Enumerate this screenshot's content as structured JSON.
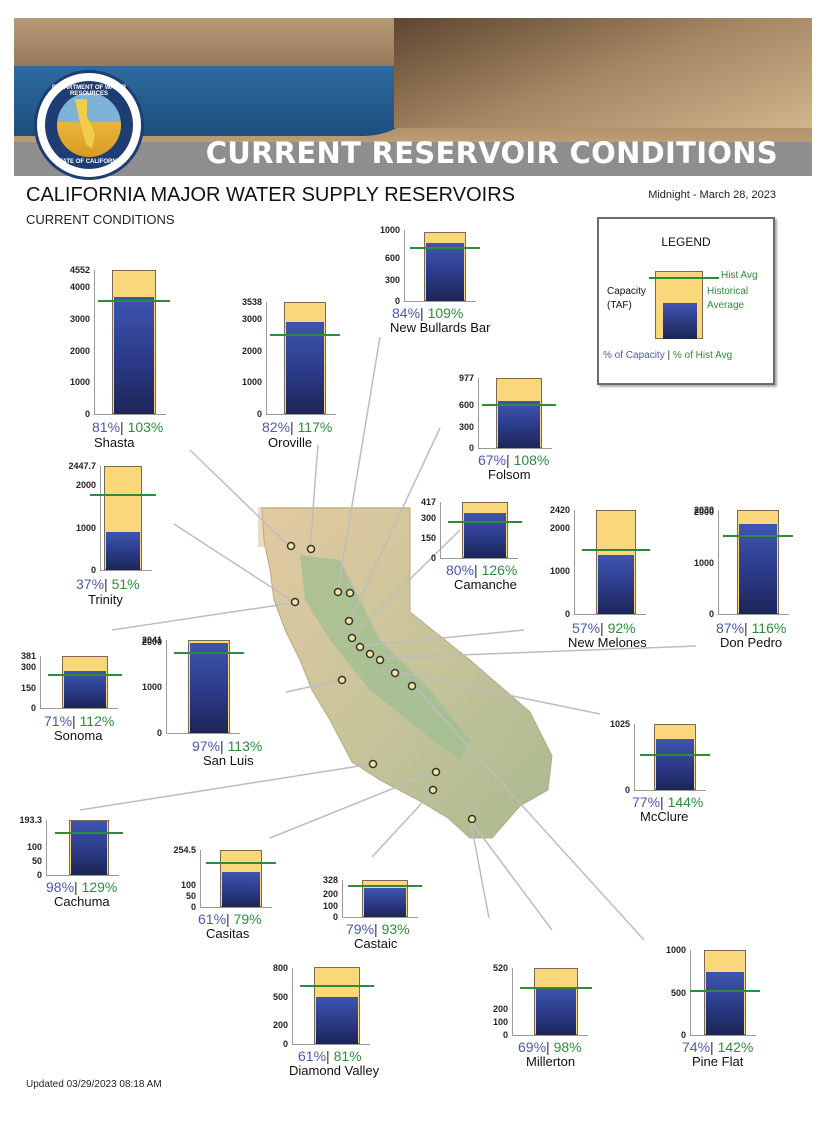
{
  "banner": {
    "title": "CURRENT RESERVOIR CONDITIONS",
    "seal_top": "DEPARTMENT OF WATER RESOURCES",
    "seal_bottom": "STATE OF CALIFORNIA"
  },
  "header": {
    "title": "CALIFORNIA MAJOR WATER SUPPLY RESERVOIRS",
    "subtitle": "CURRENT CONDITIONS",
    "date": "Midnight - March 28, 2023"
  },
  "footer": {
    "updated": "Updated 03/29/2023 08:18 AM"
  },
  "legend": {
    "title": "LEGEND",
    "hist_avg": "Hist Avg",
    "capacity_label": "Capacity\n(TAF)",
    "historical_average": "Historical\nAverage",
    "pct_capacity": "% of Capacity",
    "separator": " | ",
    "pct_hist": "% of Hist Avg"
  },
  "colors": {
    "capacity": "#f9d77a",
    "storage": "#2b3a87",
    "hist_avg": "#2e8b3c",
    "pct_capacity": "#4a5aa8",
    "map_land": "#c8c49a"
  },
  "chart_data": [
    {
      "name": "Shasta",
      "type": "bar",
      "capacity": 4552,
      "storage": 3690,
      "hist_avg": 3580,
      "pct_capacity": "81%",
      "pct_hist_avg": "103%",
      "ticks": [
        "4552",
        "4000",
        "3000",
        "2000",
        "1000",
        "0"
      ],
      "tick_values": [
        4552,
        4000,
        3000,
        2000,
        1000,
        0
      ]
    },
    {
      "name": "Oroville",
      "type": "bar",
      "capacity": 3538,
      "storage": 2900,
      "hist_avg": 2480,
      "pct_capacity": "82%",
      "pct_hist_avg": "117%",
      "ticks": [
        "3538",
        "3000",
        "2000",
        "1000",
        "0"
      ],
      "tick_values": [
        3538,
        3000,
        2000,
        1000,
        0
      ]
    },
    {
      "name": "New Bullards Bar",
      "type": "bar",
      "capacity": 966,
      "storage": 812,
      "hist_avg": 745,
      "pct_capacity": "84%",
      "pct_hist_avg": "109%",
      "ticks": [
        "1000",
        "600",
        "300",
        "0"
      ],
      "tick_values": [
        1000,
        600,
        300,
        0
      ]
    },
    {
      "name": "Folsom",
      "type": "bar",
      "capacity": 977,
      "storage": 650,
      "hist_avg": 602,
      "pct_capacity": "67%",
      "pct_hist_avg": "108%",
      "ticks": [
        "977",
        "600",
        "300",
        "0"
      ],
      "tick_values": [
        977,
        600,
        300,
        0
      ]
    },
    {
      "name": "Trinity",
      "type": "bar",
      "capacity": 2447.7,
      "storage": 906,
      "hist_avg": 1776,
      "pct_capacity": "37%",
      "pct_hist_avg": "51%",
      "ticks": [
        "2447.7",
        "2000",
        "1000",
        "0"
      ],
      "tick_values": [
        2447.7,
        2000,
        1000,
        0
      ]
    },
    {
      "name": "Camanche",
      "type": "bar",
      "capacity": 417,
      "storage": 334,
      "hist_avg": 265,
      "pct_capacity": "80%",
      "pct_hist_avg": "126%",
      "ticks": [
        "417",
        "300",
        "150",
        "0"
      ],
      "tick_values": [
        417,
        300,
        150,
        0
      ]
    },
    {
      "name": "New Melones",
      "type": "bar",
      "capacity": 2420,
      "storage": 1379,
      "hist_avg": 1500,
      "pct_capacity": "57%",
      "pct_hist_avg": "92%",
      "ticks": [
        "2420",
        "2000",
        "1000",
        "0"
      ],
      "tick_values": [
        2420,
        2000,
        1000,
        0
      ]
    },
    {
      "name": "Don Pedro",
      "type": "bar",
      "capacity": 2030,
      "storage": 1766,
      "hist_avg": 1522,
      "pct_capacity": "87%",
      "pct_hist_avg": "116%",
      "ticks": [
        "2030",
        "2000",
        "1000",
        "0"
      ],
      "tick_values": [
        2030,
        2000,
        1000,
        0
      ]
    },
    {
      "name": "Sonoma",
      "type": "bar",
      "capacity": 381,
      "storage": 271,
      "hist_avg": 242,
      "pct_capacity": "71%",
      "pct_hist_avg": "112%",
      "ticks": [
        "381",
        "300",
        "150",
        "0"
      ],
      "tick_values": [
        381,
        300,
        150,
        0
      ]
    },
    {
      "name": "San Luis",
      "type": "bar",
      "capacity": 2041,
      "storage": 1980,
      "hist_avg": 1752,
      "pct_capacity": "97%",
      "pct_hist_avg": "113%",
      "ticks": [
        "2041",
        "2000",
        "1000",
        "0"
      ],
      "tick_values": [
        2041,
        2000,
        1000,
        0
      ]
    },
    {
      "name": "McClure",
      "type": "bar",
      "capacity": 1025,
      "storage": 789,
      "hist_avg": 548,
      "pct_capacity": "77%",
      "pct_hist_avg": "144%",
      "ticks": [
        "1025",
        "0"
      ],
      "tick_values": [
        1025,
        0
      ]
    },
    {
      "name": "Cachuma",
      "type": "bar",
      "capacity": 193.3,
      "storage": 189,
      "hist_avg": 147,
      "pct_capacity": "98%",
      "pct_hist_avg": "129%",
      "ticks": [
        "193.3",
        "100",
        "50",
        "0"
      ],
      "tick_values": [
        193.3,
        100,
        50,
        0
      ]
    },
    {
      "name": "Casitas",
      "type": "bar",
      "capacity": 254.5,
      "storage": 155,
      "hist_avg": 197,
      "pct_capacity": "61%",
      "pct_hist_avg": "79%",
      "ticks": [
        "254.5",
        "100",
        "50",
        "0"
      ],
      "tick_values": [
        254.5,
        100,
        50,
        0
      ]
    },
    {
      "name": "Castaic",
      "type": "bar",
      "capacity": 328,
      "storage": 259,
      "hist_avg": 278,
      "pct_capacity": "79%",
      "pct_hist_avg": "93%",
      "ticks": [
        "328",
        "200",
        "100",
        "0"
      ],
      "tick_values": [
        328,
        200,
        100,
        0
      ]
    },
    {
      "name": "Diamond Valley",
      "type": "bar",
      "capacity": 810,
      "storage": 494,
      "hist_avg": 610,
      "pct_capacity": "61%",
      "pct_hist_avg": "81%",
      "ticks": [
        "800",
        "500",
        "200",
        "0"
      ],
      "tick_values": [
        800,
        500,
        200,
        0
      ]
    },
    {
      "name": "Millerton",
      "type": "bar",
      "capacity": 520,
      "storage": 359,
      "hist_avg": 366,
      "pct_capacity": "69%",
      "pct_hist_avg": "98%",
      "ticks": [
        "520",
        "200",
        "100",
        "0"
      ],
      "tick_values": [
        520,
        200,
        100,
        0
      ]
    },
    {
      "name": "Pine Flat",
      "type": "bar",
      "capacity": 1000,
      "storage": 740,
      "hist_avg": 521,
      "pct_capacity": "74%",
      "pct_hist_avg": "142%",
      "ticks": [
        "1000",
        "500",
        "0"
      ],
      "tick_values": [
        1000,
        500,
        0
      ]
    }
  ]
}
